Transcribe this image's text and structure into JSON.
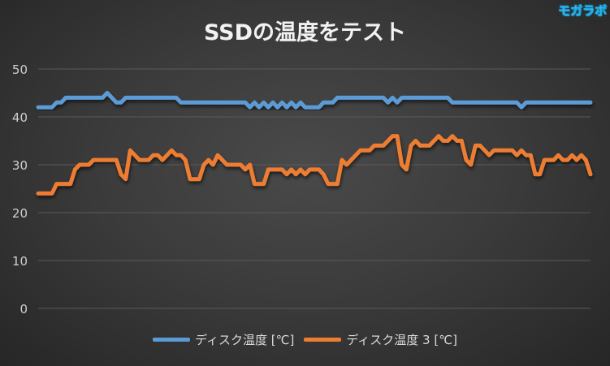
{
  "watermark": "モガラボ",
  "chart_data": {
    "type": "line",
    "title": "SSDの温度をテスト",
    "ylim": [
      0,
      50
    ],
    "yticks": [
      "0",
      "10",
      "20",
      "30",
      "40",
      "50"
    ],
    "grid": true,
    "legend_position": "bottom",
    "series": [
      {
        "name": "ディスク温度 [℃]",
        "color": "#5b9bd5",
        "values": [
          42,
          42,
          42,
          42,
          43,
          43,
          44,
          44,
          44,
          44,
          44,
          44,
          44,
          44,
          44,
          45,
          44,
          43,
          43,
          44,
          44,
          44,
          44,
          44,
          44,
          44,
          44,
          44,
          44,
          44,
          44,
          43,
          43,
          43,
          43,
          43,
          43,
          43,
          43,
          43,
          43,
          43,
          43,
          43,
          43,
          43,
          42,
          43,
          42,
          43,
          42,
          43,
          42,
          43,
          42,
          43,
          42,
          43,
          42,
          42,
          42,
          42,
          43,
          43,
          43,
          44,
          44,
          44,
          44,
          44,
          44,
          44,
          44,
          44,
          44,
          44,
          43,
          44,
          43,
          44,
          44,
          44,
          44,
          44,
          44,
          44,
          44,
          44,
          44,
          44,
          43,
          43,
          43,
          43,
          43,
          43,
          43,
          43,
          43,
          43,
          43,
          43,
          43,
          43,
          43,
          42,
          43,
          43,
          43,
          43,
          43,
          43,
          43,
          43,
          43,
          43,
          43,
          43,
          43,
          43,
          43
        ]
      },
      {
        "name": "ディスク温度 3 [℃]",
        "color": "#ed7d31",
        "values": [
          24,
          24,
          24,
          24,
          26,
          26,
          26,
          26,
          29,
          30,
          30,
          30,
          31,
          31,
          31,
          31,
          31,
          31,
          28,
          27,
          33,
          32,
          31,
          31,
          31,
          32,
          32,
          31,
          32,
          33,
          32,
          32,
          31,
          27,
          27,
          27,
          30,
          31,
          30,
          32,
          31,
          30,
          30,
          30,
          30,
          29,
          30,
          26,
          26,
          26,
          29,
          29,
          29,
          29,
          28,
          29,
          28,
          29,
          28,
          29,
          29,
          29,
          28,
          26,
          26,
          26,
          31,
          30,
          31,
          32,
          33,
          33,
          33,
          34,
          34,
          34,
          35,
          36,
          36,
          30,
          29,
          34,
          35,
          34,
          34,
          34,
          35,
          36,
          35,
          35,
          36,
          35,
          35,
          31,
          30,
          34,
          34,
          33,
          32,
          33,
          33,
          33,
          33,
          33,
          32,
          33,
          32,
          32,
          28,
          28,
          31,
          31,
          31,
          32,
          31,
          31,
          32,
          31,
          32,
          31,
          28
        ]
      }
    ]
  }
}
